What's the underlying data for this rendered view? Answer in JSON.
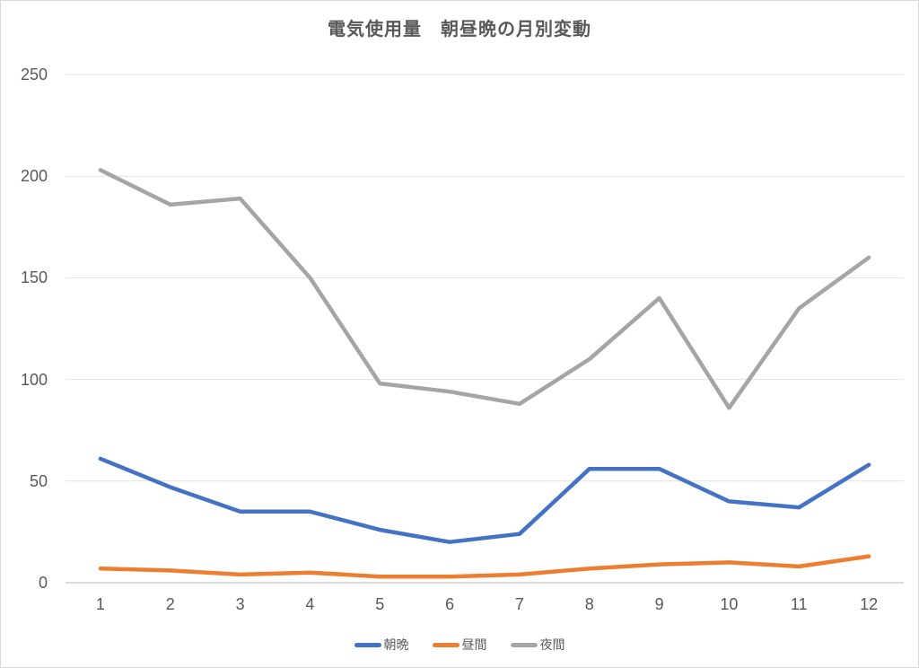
{
  "page": {
    "background": "#ffffff",
    "border_color": "#d9d9d9"
  },
  "chart_data": {
    "type": "line",
    "title": "電気使用量　朝昼晩の月別変動",
    "categories": [
      "1",
      "2",
      "3",
      "4",
      "5",
      "6",
      "7",
      "8",
      "9",
      "10",
      "11",
      "12"
    ],
    "series": [
      {
        "name": "朝晩",
        "color": "#4472C4",
        "values": [
          61,
          47,
          35,
          35,
          26,
          20,
          24,
          56,
          56,
          40,
          37,
          58
        ]
      },
      {
        "name": "昼間",
        "color": "#ED7D31",
        "values": [
          7,
          6,
          4,
          5,
          3,
          3,
          4,
          7,
          9,
          10,
          8,
          13
        ]
      },
      {
        "name": "夜間",
        "color": "#A5A5A5",
        "values": [
          203,
          186,
          189,
          150,
          98,
          94,
          88,
          110,
          140,
          86,
          135,
          160
        ]
      }
    ],
    "xlabel": "",
    "ylabel": "",
    "ylim": [
      0,
      250
    ],
    "yticks": [
      "0",
      "50",
      "100",
      "150",
      "200",
      "250"
    ],
    "grid": true,
    "gridline_color": "#e2e2e2",
    "axis_line_color": "#cfcfcf",
    "text_color": "#595959",
    "legend_position": "bottom"
  }
}
